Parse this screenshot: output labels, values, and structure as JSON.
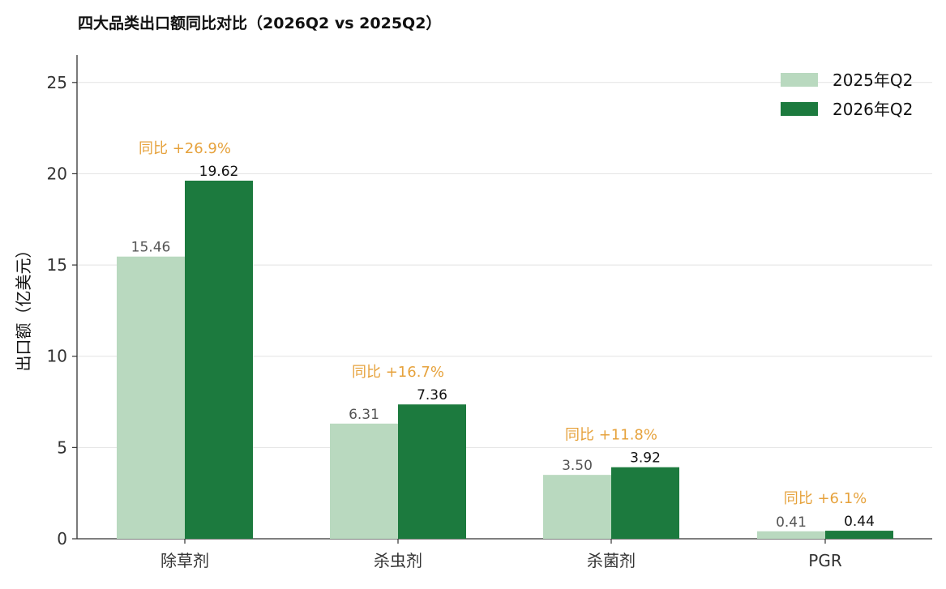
{
  "chart_data": {
    "type": "bar",
    "title": "四大品类出口额同比对比（2026Q2 vs 2025Q2）",
    "ylabel": "出口额（亿美元）",
    "xlabel": "",
    "categories": [
      "除草剂",
      "杀虫剂",
      "杀菌剂",
      "PGR"
    ],
    "series": [
      {
        "name": "2025年Q2",
        "color": "#b9d9bf",
        "values": [
          15.46,
          6.31,
          3.5,
          0.41
        ],
        "labels": [
          "15.46",
          "6.31",
          "3.50",
          "0.41"
        ]
      },
      {
        "name": "2026年Q2",
        "color": "#1c7a3e",
        "values": [
          19.62,
          7.36,
          3.92,
          0.44
        ],
        "labels": [
          "19.62",
          "7.36",
          "3.92",
          "0.44"
        ]
      }
    ],
    "annotations": [
      "同比 +26.9%",
      "同比 +16.7%",
      "同比 +11.8%",
      "同比 +6.1%"
    ],
    "annotation_color": "#e6a23c",
    "ylim": [
      0,
      26.5
    ],
    "yticks": [
      0,
      5,
      10,
      15,
      20,
      25
    ],
    "ytick_labels": [
      "0",
      "5",
      "10",
      "15",
      "20",
      "25"
    ],
    "grid": true,
    "legend_position": "top-right"
  }
}
